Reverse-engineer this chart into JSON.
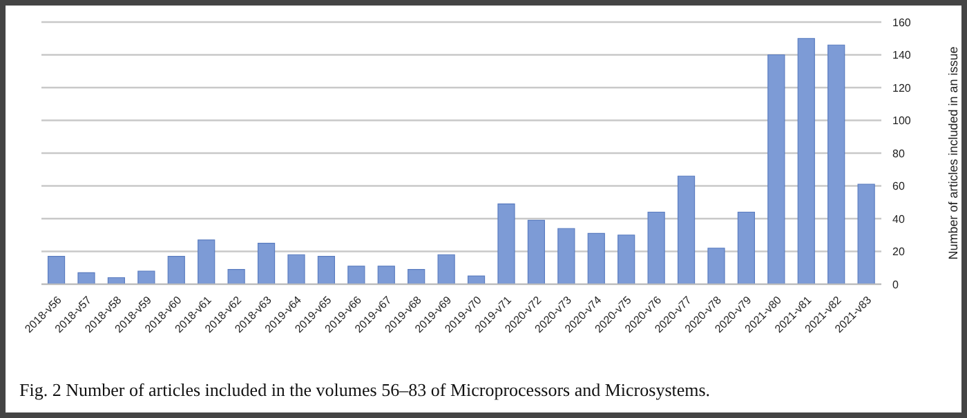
{
  "chart_data": {
    "type": "bar",
    "ylabel": "Number of articles included in an issue",
    "categories": [
      "2018-v56",
      "2018-v57",
      "2018-v58",
      "2018-v59",
      "2018-v60",
      "2018-v61",
      "2018-v62",
      "2018-v63",
      "2019-v64",
      "2019-v65",
      "2019-v66",
      "2019-v67",
      "2019-v68",
      "2019-v69",
      "2019-v70",
      "2019-v71",
      "2020-v72",
      "2020-v73",
      "2020-v74",
      "2020-v75",
      "2020-v76",
      "2020-v77",
      "2020-v78",
      "2020-v79",
      "2021-v80",
      "2021-v81",
      "2021-v82",
      "2021-v83"
    ],
    "values": [
      17,
      7,
      4,
      8,
      17,
      27,
      9,
      25,
      18,
      17,
      11,
      11,
      9,
      18,
      5,
      49,
      39,
      34,
      31,
      30,
      44,
      66,
      22,
      44,
      140,
      150,
      146,
      61
    ],
    "color": "#7d9bd6",
    "ylim": [
      0,
      160
    ],
    "yticks": [
      0,
      20,
      40,
      60,
      80,
      100,
      120,
      140,
      160
    ],
    "grid": "y",
    "annotations": [
      "Fig. 2  Number of articles included in the volumes 56–83 of Microprocessors and Microsystems."
    ]
  }
}
